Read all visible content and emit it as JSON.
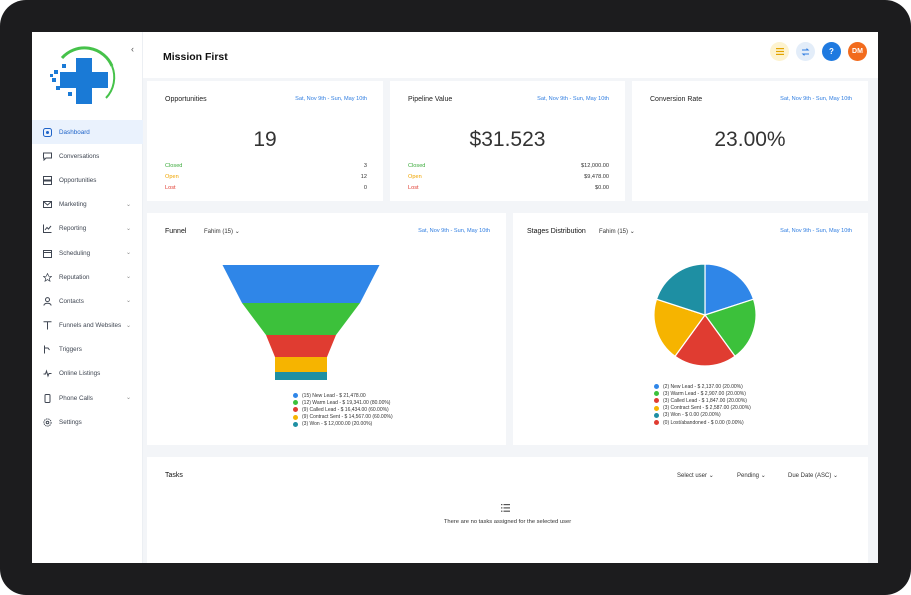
{
  "sidebar": {
    "collapse_icon": "chevron-left-icon",
    "items": [
      {
        "label": "Dashboard",
        "icon": "dashboard-icon",
        "active": true,
        "has_chevron": false
      },
      {
        "label": "Conversations",
        "icon": "chat-icon",
        "active": false,
        "has_chevron": false
      },
      {
        "label": "Opportunities",
        "icon": "layers-icon",
        "active": false,
        "has_chevron": false
      },
      {
        "label": "Marketing",
        "icon": "mail-icon",
        "active": false,
        "has_chevron": true
      },
      {
        "label": "Reporting",
        "icon": "chart-icon",
        "active": false,
        "has_chevron": true
      },
      {
        "label": "Scheduling",
        "icon": "calendar-icon",
        "active": false,
        "has_chevron": true
      },
      {
        "label": "Reputation",
        "icon": "star-icon",
        "active": false,
        "has_chevron": true
      },
      {
        "label": "Contacts",
        "icon": "person-icon",
        "active": false,
        "has_chevron": true
      },
      {
        "label": "Funnels and Websites",
        "icon": "filter-icon",
        "active": false,
        "has_chevron": true
      },
      {
        "label": "Triggers",
        "icon": "trigger-icon",
        "active": false,
        "has_chevron": false
      },
      {
        "label": "Online Listings",
        "icon": "pulse-icon",
        "active": false,
        "has_chevron": false
      },
      {
        "label": "Phone Calls",
        "icon": "phone-icon",
        "active": false,
        "has_chevron": true
      },
      {
        "label": "Settings",
        "icon": "gear-icon",
        "active": false,
        "has_chevron": false
      }
    ]
  },
  "header": {
    "title": "Mission First",
    "buttons": {
      "list_icon": "list-icon",
      "swap_icon": "swap-icon",
      "help_label": "?",
      "avatar_initials": "DM"
    },
    "colors": {
      "list_bg": "#fdf3cf",
      "list_fg": "#e3a400",
      "swap_bg": "#e3edf9",
      "swap_fg": "#2f7de1",
      "help_bg": "#1f7ae0",
      "avatar_bg": "#f26b1d"
    }
  },
  "stats": {
    "opportunities": {
      "title": "Opportunities",
      "date": "Sat, Nov 9th - Sun, May 10th",
      "value": "19",
      "rows": [
        {
          "label": "Closed",
          "value": "3",
          "color": "#3cab3c"
        },
        {
          "label": "Open",
          "value": "12",
          "color": "#f0a500"
        },
        {
          "label": "Lost",
          "value": "0",
          "color": "#e03c31"
        }
      ]
    },
    "pipeline": {
      "title": "Pipeline Value",
      "date": "Sat, Nov 9th - Sun, May 10th",
      "value": "$31.523",
      "rows": [
        {
          "label": "Closed",
          "value": "$12,000.00",
          "color": "#3cab3c"
        },
        {
          "label": "Open",
          "value": "$9,478.00",
          "color": "#f0a500"
        },
        {
          "label": "Lost",
          "value": "$0.00",
          "color": "#e03c31"
        }
      ]
    },
    "conversion": {
      "title": "Conversion Rate",
      "date": "Sat, Nov 9th - Sun, May 10th",
      "value": "23.00%"
    }
  },
  "funnel": {
    "title": "Funnel",
    "user": "Fahim (15)",
    "date": "Sat, Nov 9th - Sun, May 10th",
    "stages": [
      {
        "label": "(15) New Lead - $ 21,478.00",
        "color": "#2f86e8",
        "count": 15
      },
      {
        "label": "(12) Warm Lead - $ 19,341.00 (80.00%)",
        "color": "#3cc13b",
        "count": 12
      },
      {
        "label": "(9) Called Lead - $ 16,434.00 (60.00%)",
        "color": "#e03c31",
        "count": 9
      },
      {
        "label": "(9) Contract Sent - $ 14,567.00 (60.00%)",
        "color": "#f6b400",
        "count": 9
      },
      {
        "label": "(3) Won - $ 12,000.00 (20.00%)",
        "color": "#1e8fa3",
        "count": 3
      }
    ]
  },
  "stages_distribution": {
    "title": "Stages Distribution",
    "user": "Fahim (15)",
    "date": "Sat, Nov 9th - Sun, May 10th",
    "slices": [
      {
        "label": "(2) New Lead - $ 2,137.00 (20.00%)",
        "color": "#2f86e8",
        "value": 20
      },
      {
        "label": "(3) Warm Lead - $ 2,907.00 (20.00%)",
        "color": "#3cc13b",
        "value": 20
      },
      {
        "label": "(3) Called Lead - $ 1,847.00 (20.00%)",
        "color": "#e03c31",
        "value": 20
      },
      {
        "label": "(3) Contract Sent - $ 2,587.00 (20.00%)",
        "color": "#f6b400",
        "value": 20
      },
      {
        "label": "(3) Won - $ 0.00 (20.00%)",
        "color": "#1e8fa3",
        "value": 20
      },
      {
        "label": "(0) Lost/abandoned - $ 0.00 (0.00%)",
        "color": "#e03c31",
        "value": 0
      }
    ]
  },
  "tasks": {
    "title": "Tasks",
    "filters": [
      "Select user",
      "Pending",
      "Due Date (ASC)"
    ],
    "empty_icon": "list-icon",
    "empty_message": "There are no tasks assigned for the selected user"
  }
}
